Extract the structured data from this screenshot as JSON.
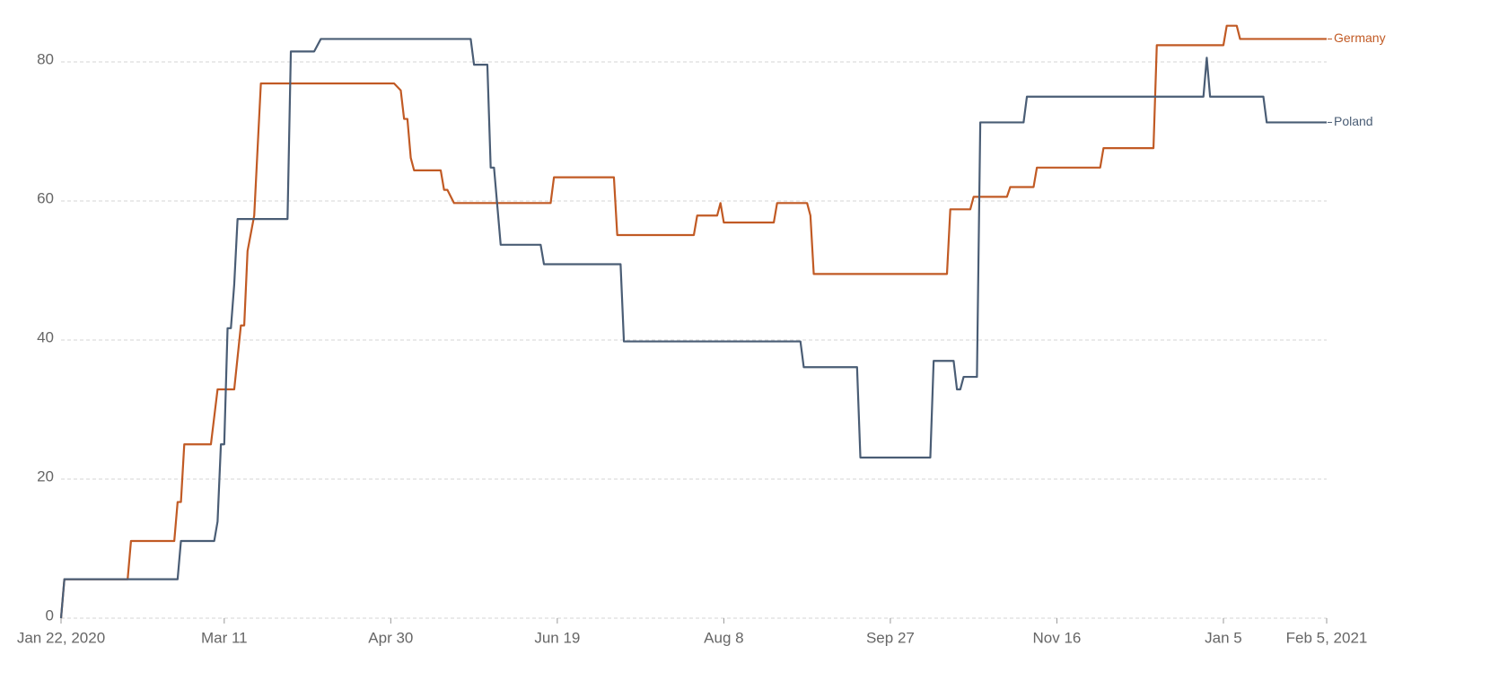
{
  "chart_data": {
    "type": "line",
    "xlim": [
      "2020-01-22",
      "2021-02-05"
    ],
    "xticks": [
      {
        "value": "2020-01-22",
        "label": "Jan 22, 2020"
      },
      {
        "value": "2020-03-11",
        "label": "Mar 11"
      },
      {
        "value": "2020-04-30",
        "label": "Apr 30"
      },
      {
        "value": "2020-06-19",
        "label": "Jun 19"
      },
      {
        "value": "2020-08-08",
        "label": "Aug 8"
      },
      {
        "value": "2020-09-27",
        "label": "Sep 27"
      },
      {
        "value": "2020-11-16",
        "label": "Nov 16"
      },
      {
        "value": "2021-01-05",
        "label": "Jan 5"
      },
      {
        "value": "2021-02-05",
        "label": "Feb 5, 2021"
      }
    ],
    "ylim": [
      0,
      88
    ],
    "yticks": [
      0,
      20,
      40,
      60,
      80
    ],
    "grid": true,
    "legend": "line-end",
    "series": [
      {
        "name": "Germany",
        "color": "#c15a24",
        "x": [
          "2020-01-22",
          "2020-01-23",
          "2020-02-11",
          "2020-02-12",
          "2020-02-25",
          "2020-02-26",
          "2020-02-27",
          "2020-02-28",
          "2020-03-07",
          "2020-03-09",
          "2020-03-14",
          "2020-03-16",
          "2020-03-17",
          "2020-03-18",
          "2020-03-20",
          "2020-03-22",
          "2020-05-01",
          "2020-05-03",
          "2020-05-04",
          "2020-05-05",
          "2020-05-06",
          "2020-05-07",
          "2020-05-15",
          "2020-05-16",
          "2020-05-17",
          "2020-05-19",
          "2020-06-17",
          "2020-06-18",
          "2020-07-06",
          "2020-07-07",
          "2020-07-30",
          "2020-07-31",
          "2020-08-06",
          "2020-08-07",
          "2020-08-08",
          "2020-08-23",
          "2020-08-24",
          "2020-09-02",
          "2020-09-03",
          "2020-09-04",
          "2020-10-14",
          "2020-10-15",
          "2020-10-21",
          "2020-10-22",
          "2020-11-01",
          "2020-11-02",
          "2020-11-09",
          "2020-11-10",
          "2020-11-29",
          "2020-11-30",
          "2020-12-15",
          "2020-12-16",
          "2021-01-05",
          "2021-01-06",
          "2021-01-09",
          "2021-01-10",
          "2021-02-05"
        ],
        "values": [
          0,
          5.6,
          5.6,
          11.1,
          11.1,
          16.7,
          16.7,
          25,
          25,
          32.9,
          32.9,
          42.1,
          42.1,
          52.8,
          57.9,
          76.9,
          76.9,
          75.9,
          71.8,
          71.8,
          66.2,
          64.4,
          64.4,
          61.6,
          61.6,
          59.7,
          59.7,
          63.4,
          63.4,
          55.1,
          55.1,
          57.9,
          57.9,
          59.7,
          56.9,
          56.9,
          59.7,
          59.7,
          57.9,
          49.5,
          49.5,
          58.8,
          58.8,
          60.6,
          60.6,
          62.0,
          62.0,
          64.8,
          64.8,
          67.6,
          67.6,
          82.4,
          82.4,
          85.2,
          85.2,
          83.3,
          83.3
        ]
      },
      {
        "name": "Poland",
        "color": "#4a5d75",
        "x": [
          "2020-01-22",
          "2020-01-23",
          "2020-02-26",
          "2020-02-27",
          "2020-03-08",
          "2020-03-09",
          "2020-03-10",
          "2020-03-11",
          "2020-03-12",
          "2020-03-13",
          "2020-03-14",
          "2020-03-15",
          "2020-03-30",
          "2020-03-31",
          "2020-04-07",
          "2020-04-09",
          "2020-05-24",
          "2020-05-25",
          "2020-05-29",
          "2020-05-30",
          "2020-05-31",
          "2020-06-02",
          "2020-06-14",
          "2020-06-15",
          "2020-07-08",
          "2020-07-09",
          "2020-08-31",
          "2020-09-01",
          "2020-09-17",
          "2020-09-18",
          "2020-10-09",
          "2020-10-10",
          "2020-10-16",
          "2020-10-17",
          "2020-10-18",
          "2020-10-19",
          "2020-10-23",
          "2020-10-24",
          "2020-11-06",
          "2020-11-07",
          "2020-12-30",
          "2020-12-31",
          "2021-01-01",
          "2021-01-17",
          "2021-01-18",
          "2021-02-05"
        ],
        "values": [
          0,
          5.6,
          5.6,
          11.1,
          11.1,
          13.9,
          25,
          25,
          41.7,
          41.7,
          48,
          57.4,
          57.4,
          81.5,
          81.5,
          83.3,
          83.3,
          79.6,
          79.6,
          64.8,
          64.8,
          53.7,
          53.7,
          50.9,
          50.9,
          39.8,
          39.8,
          36.1,
          36.1,
          23.1,
          23.1,
          37.0,
          37.0,
          32.9,
          32.9,
          34.7,
          34.7,
          71.3,
          71.3,
          75,
          75,
          80.6,
          75,
          75,
          71.3,
          71.3
        ]
      }
    ]
  }
}
